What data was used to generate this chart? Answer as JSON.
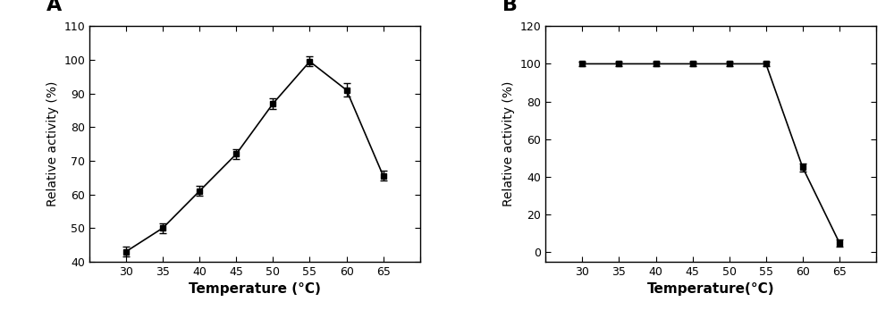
{
  "A": {
    "x": [
      30,
      35,
      40,
      45,
      50,
      55,
      60,
      65
    ],
    "y": [
      43,
      50,
      61,
      72,
      87,
      99.5,
      91,
      65.5
    ],
    "yerr": [
      1.5,
      1.5,
      1.5,
      1.5,
      1.5,
      1.5,
      2.0,
      1.5
    ],
    "xlabel": "Temperature (°C)",
    "ylabel": "Relative activity (%)",
    "label": "A",
    "xlim": [
      25,
      70
    ],
    "ylim": [
      40,
      110
    ],
    "yticks": [
      40,
      50,
      60,
      70,
      80,
      90,
      100,
      110
    ],
    "xticks": [
      25,
      30,
      35,
      40,
      45,
      50,
      55,
      60,
      65,
      70
    ]
  },
  "B": {
    "x": [
      30,
      35,
      40,
      45,
      50,
      55,
      60,
      65
    ],
    "y": [
      100,
      100,
      100,
      100,
      100,
      100,
      45,
      5
    ],
    "yerr": [
      1.0,
      1.0,
      1.0,
      1.0,
      1.0,
      1.0,
      2.0,
      2.0
    ],
    "xlabel": "Temperature(°C)",
    "ylabel": "Relative activity (%)",
    "label": "B",
    "xlim": [
      25,
      70
    ],
    "ylim": [
      -5,
      120
    ],
    "yticks": [
      0,
      20,
      40,
      60,
      80,
      100,
      120
    ],
    "xticks": [
      25,
      30,
      35,
      40,
      45,
      50,
      55,
      60,
      65,
      70
    ]
  }
}
